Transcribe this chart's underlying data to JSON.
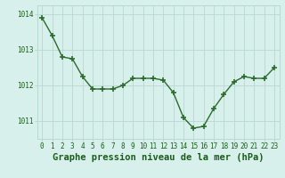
{
  "x": [
    0,
    1,
    2,
    3,
    4,
    5,
    6,
    7,
    8,
    9,
    10,
    11,
    12,
    13,
    14,
    15,
    16,
    17,
    18,
    19,
    20,
    21,
    22,
    23
  ],
  "y": [
    1013.9,
    1013.4,
    1012.8,
    1012.75,
    1012.25,
    1011.9,
    1011.9,
    1011.9,
    1012.0,
    1012.2,
    1012.2,
    1012.2,
    1012.15,
    1011.8,
    1011.1,
    1010.8,
    1010.85,
    1011.35,
    1011.75,
    1012.1,
    1012.25,
    1012.2,
    1012.2,
    1012.5
  ],
  "line_color": "#2d6a2d",
  "marker_color": "#2d6a2d",
  "bg_color": "#d8f0ec",
  "grid_color": "#b8d8d0",
  "label_color": "#1a5c1a",
  "xlabel": "Graphe pression niveau de la mer (hPa)",
  "ylim_min": 1010.5,
  "ylim_max": 1014.25,
  "yticks": [
    1011,
    1012,
    1013,
    1014
  ],
  "xticks": [
    0,
    1,
    2,
    3,
    4,
    5,
    6,
    7,
    8,
    9,
    10,
    11,
    12,
    13,
    14,
    15,
    16,
    17,
    18,
    19,
    20,
    21,
    22,
    23
  ],
  "tick_fontsize": 5.5,
  "xlabel_fontsize": 7.5
}
